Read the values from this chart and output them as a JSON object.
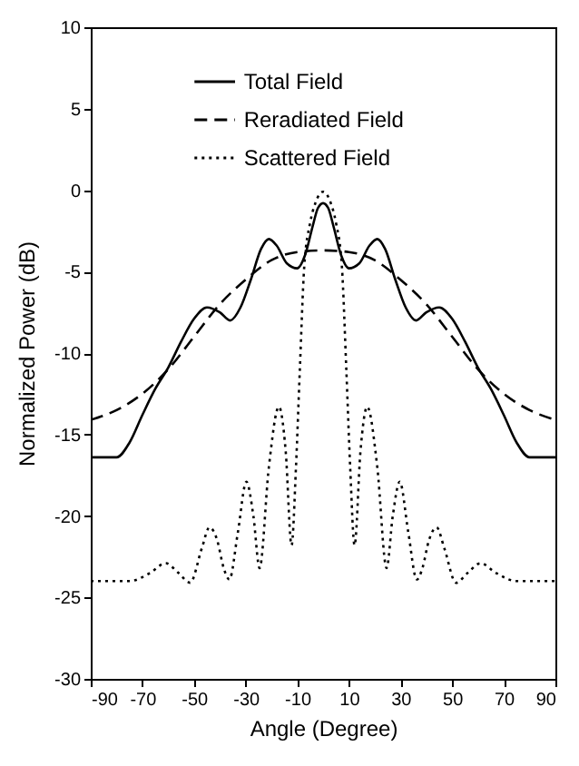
{
  "chart_data": {
    "type": "line",
    "xlabel": "Angle (Degree)",
    "ylabel": "Normalized Power (dB)",
    "xlim": [
      -90,
      90
    ],
    "xticks": [
      -90,
      -70,
      -50,
      -30,
      -10,
      10,
      30,
      50,
      70,
      90
    ],
    "ylim": [
      -30,
      10
    ],
    "yticks": [
      -30,
      -25,
      -20,
      -15,
      -10,
      -5,
      0,
      5,
      10
    ],
    "grid": false,
    "legend": "top",
    "marker": "none",
    "series": [
      {
        "name": "Total Field",
        "color": "#000000",
        "line_style": "solid",
        "x": [
          -90,
          -80,
          -75,
          -70,
          -65,
          -60,
          -55,
          -50,
          -45,
          -40,
          -36,
          -32,
          -28,
          -24,
          -21,
          -18,
          -14,
          -10,
          -7,
          -4,
          -2,
          0,
          2,
          4,
          7,
          10,
          14,
          18,
          21,
          24,
          28,
          32,
          36,
          40,
          45,
          50,
          55,
          60,
          65,
          70,
          75,
          80,
          90
        ],
        "values": [
          -16.4,
          -16.4,
          -15.5,
          -13.8,
          -12.2,
          -10.9,
          -9.3,
          -7.9,
          -7.2,
          -7.5,
          -8.0,
          -7.2,
          -5.5,
          -3.6,
          -3.0,
          -3.4,
          -4.5,
          -4.8,
          -4.0,
          -2.2,
          -1.1,
          -0.8,
          -1.1,
          -2.2,
          -4.0,
          -4.8,
          -4.5,
          -3.4,
          -3.0,
          -3.6,
          -5.5,
          -7.2,
          -8.0,
          -7.5,
          -7.2,
          -7.9,
          -9.3,
          -10.9,
          -12.2,
          -13.8,
          -15.5,
          -16.4,
          -16.4
        ]
      },
      {
        "name": "Reradiated Field",
        "color": "#000000",
        "line_style": "dashed",
        "x": [
          -90,
          -80,
          -70,
          -60,
          -50,
          -40,
          -30,
          -20,
          -10,
          0,
          10,
          20,
          30,
          40,
          50,
          60,
          70,
          80,
          90
        ],
        "values": [
          -14.1,
          -13.5,
          -12.5,
          -11,
          -9,
          -7,
          -5.5,
          -4.3,
          -3.8,
          -3.7,
          -3.8,
          -4.3,
          -5.5,
          -7,
          -9,
          -11,
          -12.5,
          -13.5,
          -14.1
        ]
      },
      {
        "name": "Scattered Field",
        "color": "#000000",
        "line_style": "dotted",
        "x": [
          -90,
          -75,
          -67,
          -61,
          -56,
          -51.5,
          -47,
          -44,
          -41,
          -38.5,
          -36.3,
          -33,
          -29.7,
          -27,
          -24.6,
          -21,
          -17.1,
          -14.5,
          -12.2,
          -10.5,
          -9,
          -7.3,
          -5,
          -3,
          0,
          3,
          5,
          7.3,
          9,
          10.5,
          12.2,
          14.5,
          17.1,
          21,
          24.6,
          27,
          29.7,
          33,
          36.3,
          38.5,
          41,
          44,
          47,
          51.5,
          56,
          61,
          67,
          75,
          90
        ],
        "values": [
          -24,
          -24,
          -23.5,
          -22.9,
          -23.5,
          -24.1,
          -22,
          -20.7,
          -21.5,
          -23.2,
          -23.9,
          -21,
          -17.9,
          -20,
          -23.2,
          -17,
          -13.3,
          -16,
          -21.8,
          -17,
          -11,
          -4.7,
          -2,
          -0.8,
          -0.1,
          -0.8,
          -2,
          -4.7,
          -11,
          -17,
          -21.8,
          -16,
          -13.3,
          -17,
          -23.2,
          -20,
          -17.9,
          -21,
          -23.9,
          -23.2,
          -21.5,
          -20.7,
          -22,
          -24.1,
          -23.5,
          -22.9,
          -23.5,
          -24,
          -24
        ]
      }
    ]
  }
}
